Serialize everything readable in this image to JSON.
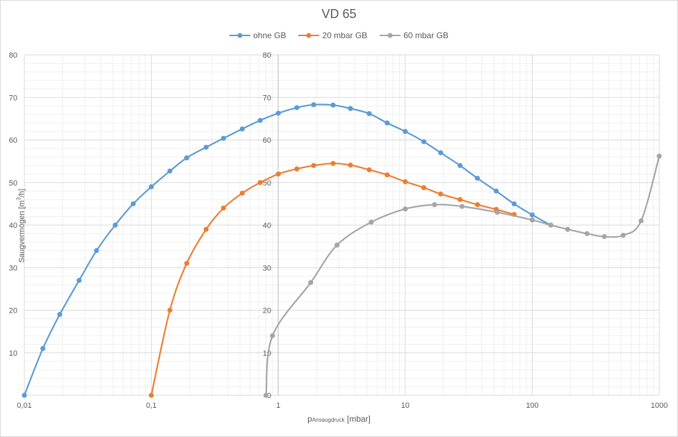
{
  "chart_data": {
    "type": "line",
    "title": "VD 65",
    "xlabel_main": "p",
    "xlabel_sub": "Ansaugdruck",
    "xlabel_unit": "[mbar]",
    "ylabel_main": "Saugvermögen [m",
    "ylabel_sup": "3",
    "ylabel_end": "/h]",
    "x_scale": "log",
    "xlim": [
      0.01,
      1000
    ],
    "ylim": [
      0,
      80
    ],
    "x_ticks": [
      0.01,
      0.1,
      1,
      10,
      100,
      1000
    ],
    "x_tick_labels": [
      "0,01",
      "0,1",
      "1",
      "10",
      "100",
      "1000"
    ],
    "y_ticks_left": [
      "10",
      "20",
      "30",
      "40",
      "50",
      "60",
      "70",
      "80"
    ],
    "y_ticks_axis": [
      "0",
      "10",
      "20",
      "30",
      "40",
      "50",
      "60",
      "70",
      "80"
    ],
    "grid": true,
    "legend_position": "top",
    "series": [
      {
        "name": "ohne GB",
        "color": "#5b9bd5",
        "x": [
          0.01,
          0.014,
          0.019,
          0.027,
          0.037,
          0.052,
          0.072,
          0.1,
          0.14,
          0.19,
          0.27,
          0.37,
          0.52,
          0.72,
          1.0,
          1.4,
          1.9,
          2.7,
          3.7,
          5.2,
          7.2,
          10,
          14,
          19,
          27,
          37,
          52,
          72,
          100,
          140
        ],
        "y": [
          0,
          11,
          19,
          27,
          34,
          40,
          45,
          49,
          52.7,
          55.8,
          58.3,
          60.4,
          62.6,
          64.6,
          66.3,
          67.6,
          68.3,
          68.2,
          67.4,
          66.2,
          64,
          62,
          59.6,
          57,
          54,
          51,
          48,
          45,
          42.4,
          40
        ]
      },
      {
        "name": "20 mbar GB",
        "color": "#ed7d31",
        "x": [
          0.1,
          0.14,
          0.19,
          0.27,
          0.37,
          0.52,
          0.72,
          1.0,
          1.4,
          1.9,
          2.7,
          3.7,
          5.2,
          7.2,
          10,
          14,
          19,
          27,
          37,
          52,
          72
        ],
        "y": [
          0,
          20,
          31,
          39,
          44,
          47.5,
          50,
          52,
          53.2,
          54,
          54.5,
          54.1,
          53,
          51.8,
          50.2,
          48.8,
          47.3,
          46,
          44.8,
          43.7,
          42.5
        ]
      },
      {
        "name": "60 mbar GB",
        "color": "#a5a5a5",
        "x": [
          0.8,
          0.9,
          1.8,
          2.9,
          5.4,
          10,
          17,
          28,
          53,
          100,
          140,
          190,
          270,
          370,
          520,
          720,
          1000
        ],
        "y": [
          0,
          14,
          26.5,
          35.3,
          40.7,
          43.8,
          44.8,
          44.4,
          43,
          41.2,
          40,
          39,
          38,
          37.3,
          37.6,
          41,
          56.2
        ]
      }
    ]
  }
}
